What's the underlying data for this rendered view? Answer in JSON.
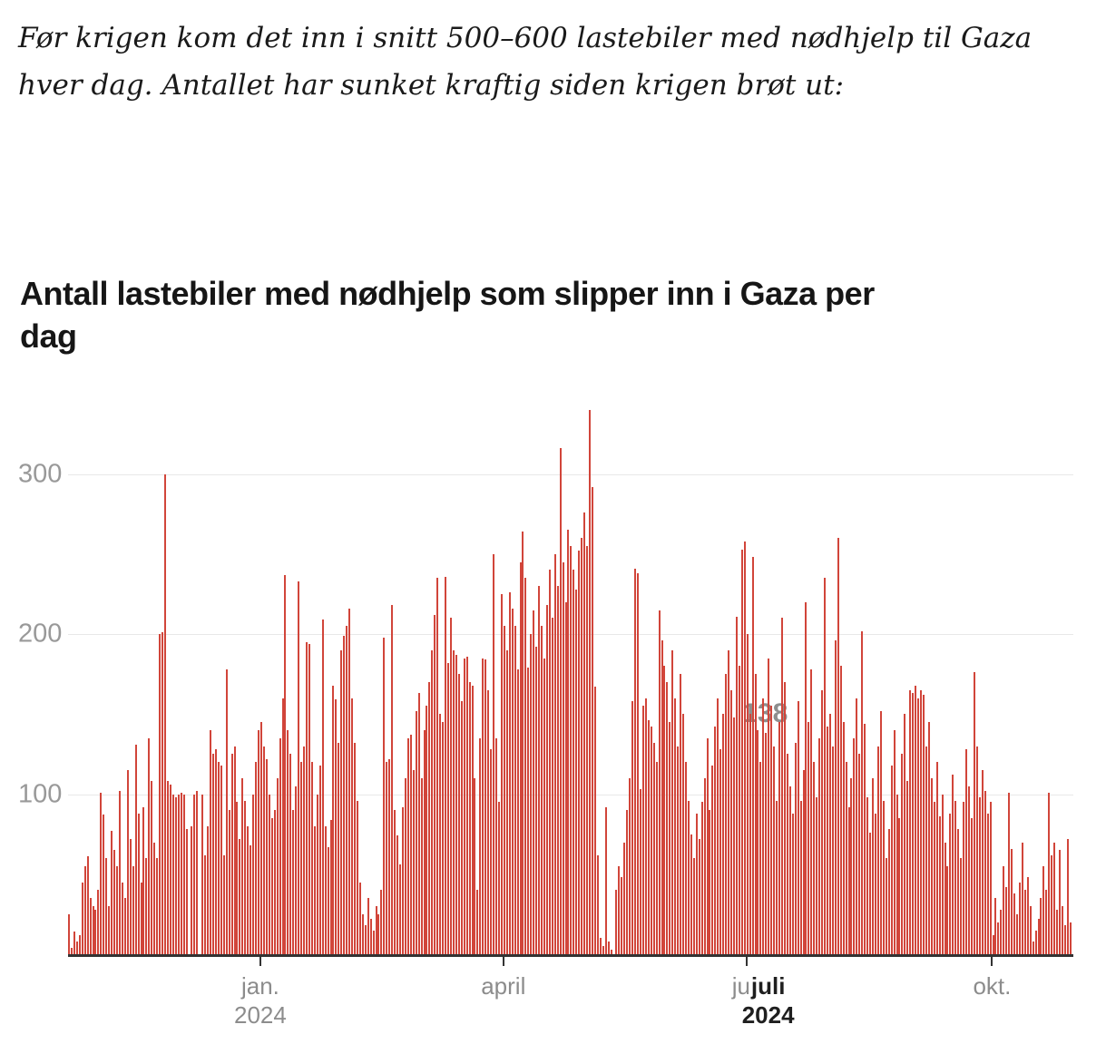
{
  "intro": {
    "line1": "Før krigen kom det inn i snitt 500–600 lastebiler med nødhjelp til Gaza",
    "line2": "hver dag. Antallet har sunket kraftig siden krigen brøt ut:"
  },
  "heading": {
    "line1": "Antall lastebiler med nødhjelp som slipper inn i Gaza per",
    "line2": "dag"
  },
  "chart_data": {
    "type": "bar",
    "title": "Antall lastebiler med nødhjelp som slipper inn i Gaza per dag",
    "ylabel": "",
    "xlabel": "",
    "ylim": [
      0,
      350
    ],
    "y_ticks": [
      100,
      200,
      300
    ],
    "grid": "horizontal",
    "bar_color": "#d1453a",
    "start_date": "2023-10-21",
    "end_date": "2024-10-30",
    "x_ticks": [
      {
        "label": "jan.",
        "sub": "2024",
        "day": 72
      },
      {
        "label": "april",
        "sub": "",
        "day": 163
      },
      {
        "label": "juli",
        "sub": "",
        "day": 254,
        "hover_label": "juli",
        "hover_sub": "2024"
      },
      {
        "label": "okt.",
        "sub": "",
        "day": 346
      }
    ],
    "annotation": {
      "label": "138",
      "day": 261,
      "date": "2024-07-08"
    },
    "values": [
      25,
      4,
      14,
      8,
      12,
      45,
      55,
      61,
      35,
      30,
      28,
      40,
      101,
      87,
      60,
      30,
      77,
      65,
      55,
      102,
      45,
      35,
      115,
      72,
      55,
      131,
      88,
      45,
      92,
      60,
      135,
      108,
      70,
      60,
      200,
      201,
      300,
      108,
      106,
      100,
      98,
      100,
      101,
      100,
      78,
      0,
      80,
      100,
      102,
      0,
      100,
      62,
      80,
      140,
      125,
      128,
      120,
      118,
      62,
      178,
      90,
      125,
      130,
      95,
      72,
      110,
      96,
      80,
      68,
      100,
      120,
      140,
      145,
      130,
      122,
      100,
      85,
      90,
      110,
      135,
      160,
      237,
      140,
      125,
      90,
      105,
      233,
      120,
      130,
      195,
      194,
      120,
      80,
      100,
      118,
      209,
      80,
      67,
      84,
      168,
      159,
      132,
      190,
      199,
      205,
      216,
      160,
      132,
      96,
      45,
      25,
      18,
      35,
      22,
      15,
      30,
      25,
      40,
      198,
      120,
      122,
      218,
      90,
      74,
      56,
      92,
      110,
      135,
      137,
      115,
      152,
      163,
      110,
      140,
      155,
      170,
      190,
      212,
      235,
      150,
      145,
      236,
      182,
      210,
      190,
      187,
      175,
      158,
      185,
      186,
      170,
      168,
      110,
      40,
      135,
      185,
      184,
      165,
      128,
      250,
      135,
      95,
      225,
      205,
      190,
      226,
      216,
      205,
      178,
      245,
      264,
      235,
      179,
      200,
      215,
      192,
      230,
      205,
      185,
      218,
      240,
      210,
      250,
      230,
      316,
      245,
      220,
      265,
      255,
      240,
      228,
      252,
      260,
      276,
      255,
      340,
      292,
      167,
      62,
      10,
      5,
      92,
      8,
      3,
      0,
      40,
      55,
      48,
      70,
      90,
      110,
      158,
      241,
      238,
      103,
      155,
      160,
      146,
      142,
      132,
      120,
      215,
      196,
      180,
      170,
      145,
      190,
      160,
      130,
      175,
      150,
      120,
      96,
      75,
      60,
      88,
      72,
      95,
      110,
      135,
      90,
      118,
      142,
      160,
      128,
      150,
      175,
      190,
      165,
      148,
      211,
      180,
      253,
      258,
      200,
      150,
      248,
      175,
      140,
      120,
      160,
      138,
      185,
      155,
      130,
      96,
      145,
      210,
      170,
      125,
      105,
      88,
      132,
      158,
      96,
      115,
      220,
      145,
      178,
      120,
      98,
      135,
      165,
      235,
      142,
      150,
      130,
      196,
      260,
      180,
      145,
      120,
      92,
      110,
      135,
      160,
      125,
      202,
      144,
      98,
      76,
      110,
      88,
      130,
      152,
      96,
      60,
      78,
      118,
      140,
      100,
      85,
      125,
      150,
      108,
      165,
      163,
      168,
      160,
      165,
      162,
      130,
      145,
      110,
      95,
      120,
      86,
      100,
      70,
      55,
      88,
      112,
      96,
      78,
      60,
      95,
      128,
      105,
      85,
      176,
      130,
      98,
      115,
      102,
      88,
      95,
      12,
      35,
      20,
      28,
      55,
      42,
      101,
      66,
      38,
      25,
      45,
      70,
      40,
      48,
      30,
      8,
      15,
      22,
      35,
      55,
      40,
      101,
      62,
      70,
      28,
      65,
      30,
      18,
      72,
      20
    ]
  }
}
